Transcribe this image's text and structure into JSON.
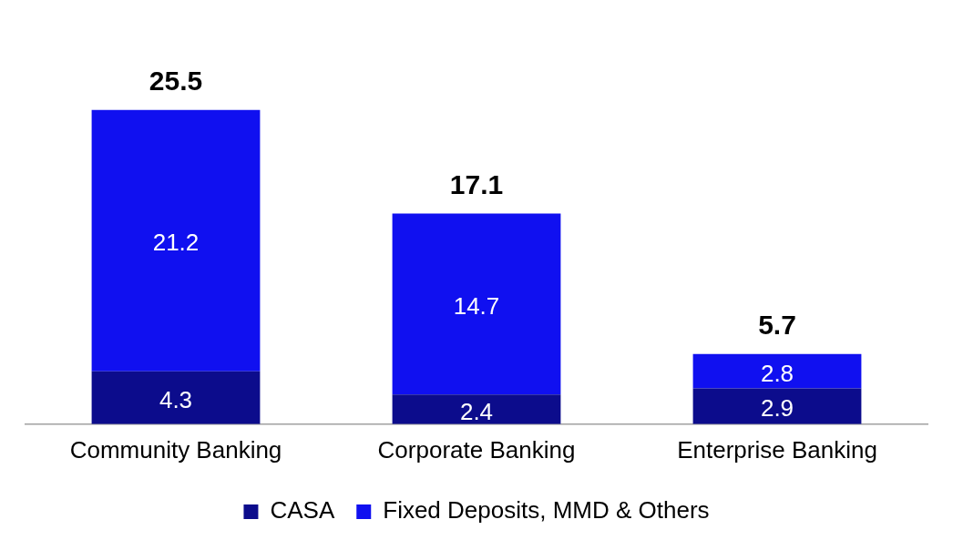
{
  "chart_data": {
    "type": "bar",
    "stacked": true,
    "categories": [
      "Community Banking",
      "Corporate Banking",
      "Enterprise Banking"
    ],
    "series": [
      {
        "name": "CASA",
        "color": "#0c0c8c",
        "values": [
          4.3,
          2.4,
          2.9
        ]
      },
      {
        "name": "Fixed Deposits, MMD & Others",
        "color": "#1010f0",
        "values": [
          21.2,
          14.7,
          2.8
        ]
      }
    ],
    "totals": [
      "25.5",
      "17.1",
      "5.7"
    ],
    "data_labels": true,
    "legend": "bottom",
    "grid": false
  }
}
